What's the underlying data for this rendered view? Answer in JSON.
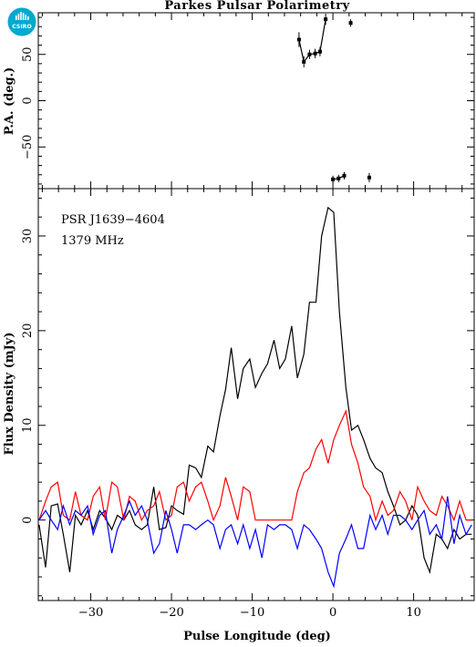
{
  "chart_data": {
    "type": "line",
    "title": "Parkes Pulsar Polarimetry",
    "logo_text": "CSIRO",
    "annotations": [
      "PSR J1639−4604",
      "1379 MHz"
    ],
    "xlabel": "Pulse Longitude (deg)",
    "xlim": [
      -36.5,
      17.5
    ],
    "x_ticks": [
      -30,
      -20,
      -10,
      0,
      10
    ],
    "panels": {
      "pa": {
        "ylabel": "P.A. (deg.)",
        "ylim": [
          -95,
          95
        ],
        "y_ticks": [
          -50,
          0,
          50
        ],
        "points": [
          {
            "x": -4.2,
            "y": 66,
            "err": 8
          },
          {
            "x": -3.6,
            "y": 42,
            "err": 6
          },
          {
            "x": -2.9,
            "y": 50,
            "err": 5
          },
          {
            "x": -2.2,
            "y": 51,
            "err": 5
          },
          {
            "x": -1.6,
            "y": 53,
            "err": 5
          },
          {
            "x": -0.9,
            "y": 88,
            "err": 6
          },
          {
            "x": 0.0,
            "y": -85,
            "err": 4
          },
          {
            "x": 0.7,
            "y": -84,
            "err": 4
          },
          {
            "x": 1.4,
            "y": -81,
            "err": 4
          },
          {
            "x": 2.2,
            "y": 84,
            "err": 4
          },
          {
            "x": 4.5,
            "y": -83,
            "err": 5
          }
        ]
      },
      "profile": {
        "ylabel": "Flux Density (mJy)",
        "ylim": [
          -8.5,
          35
        ],
        "y_ticks": [
          0,
          10,
          20,
          30
        ],
        "series": [
          {
            "key": "total",
            "color": "#000000",
            "x": [
              -36.4,
              -35.6,
              -34.9,
              -34.1,
              -33.4,
              -32.6,
              -31.9,
              -31.2,
              -30.4,
              -29.7,
              -28.9,
              -28.2,
              -27.4,
              -26.7,
              -25.9,
              -25.2,
              -24.5,
              -23.7,
              -23.0,
              -22.2,
              -21.5,
              -20.7,
              -20.0,
              -19.3,
              -18.5,
              -17.8,
              -17.0,
              -16.3,
              -15.5,
              -14.8,
              -14.0,
              -13.3,
              -12.6,
              -11.8,
              -11.1,
              -10.3,
              -9.6,
              -8.8,
              -8.1,
              -7.3,
              -6.6,
              -5.9,
              -5.1,
              -4.4,
              -3.6,
              -2.9,
              -2.1,
              -1.4,
              -0.6,
              0.1,
              0.8,
              1.6,
              2.3,
              3.1,
              3.8,
              4.6,
              5.3,
              6.1,
              6.8,
              7.5,
              8.3,
              9.0,
              9.8,
              10.5,
              11.3,
              12.0,
              12.8,
              13.5,
              14.2,
              15.0,
              15.7,
              16.5,
              17.2
            ],
            "y": [
              -0.5,
              -5.0,
              1.5,
              1.7,
              -1.5,
              -5.5,
              0.5,
              -0.5,
              1.0,
              -1.0,
              1.0,
              0.2,
              -1.0,
              0.5,
              0.0,
              1.0,
              -0.5,
              -1.0,
              -0.5,
              3.5,
              -1.0,
              -0.8,
              1.5,
              1.0,
              0.6,
              5.8,
              5.5,
              4.5,
              7.8,
              7.2,
              11.0,
              13.8,
              18.2,
              12.8,
              16.0,
              17.0,
              14.0,
              15.5,
              16.5,
              19.0,
              16.0,
              17.0,
              20.5,
              15.0,
              17.5,
              23.0,
              23.0,
              30.0,
              33.0,
              32.5,
              22.0,
              14.0,
              9.5,
              10.0,
              8.5,
              6.5,
              5.5,
              5.0,
              3.0,
              1.5,
              -0.5,
              0.0,
              1.5,
              0.5,
              -4.0,
              -5.5,
              -1.5,
              -2.0,
              -3.0,
              -1.0,
              -2.0,
              -1.5,
              -1.5
            ]
          },
          {
            "key": "linear",
            "color": "#ff0000",
            "x": [
              -36.4,
              -35.6,
              -34.9,
              -34.1,
              -33.4,
              -32.6,
              -31.9,
              -31.2,
              -30.4,
              -29.7,
              -28.9,
              -28.2,
              -27.4,
              -26.7,
              -25.9,
              -25.2,
              -24.5,
              -23.7,
              -23.0,
              -22.2,
              -21.5,
              -20.7,
              -20.0,
              -19.3,
              -18.5,
              -17.8,
              -17.0,
              -16.3,
              -15.5,
              -14.8,
              -14.0,
              -13.3,
              -12.6,
              -11.8,
              -11.1,
              -10.3,
              -9.6,
              -8.8,
              -8.1,
              -7.3,
              -6.6,
              -5.9,
              -5.1,
              -4.4,
              -3.6,
              -2.9,
              -2.1,
              -1.4,
              -0.6,
              0.1,
              0.8,
              1.6,
              2.3,
              3.1,
              3.8,
              4.6,
              5.3,
              6.1,
              6.8,
              7.5,
              8.3,
              9.0,
              9.8,
              10.5,
              11.3,
              12.0,
              12.8,
              13.5,
              14.2,
              15.0,
              15.7,
              16.5,
              17.2
            ],
            "y": [
              0.0,
              2.0,
              3.5,
              4.0,
              0.5,
              0.0,
              3.0,
              0.5,
              0.0,
              2.5,
              3.5,
              0.0,
              4.0,
              3.5,
              0.0,
              2.5,
              2.0,
              0.0,
              1.0,
              1.5,
              3.0,
              0.0,
              0.5,
              3.5,
              4.0,
              2.0,
              3.5,
              4.0,
              2.0,
              0.0,
              1.5,
              4.5,
              2.5,
              0.0,
              3.5,
              3.0,
              0.0,
              0.0,
              0.0,
              0.0,
              0.0,
              0.0,
              0.0,
              3.0,
              5.0,
              5.5,
              7.5,
              8.5,
              6.0,
              8.5,
              10.0,
              11.5,
              8.0,
              6.0,
              3.5,
              2.5,
              0.0,
              2.0,
              0.5,
              1.0,
              3.0,
              2.0,
              0.0,
              3.5,
              2.0,
              1.0,
              0.5,
              2.5,
              1.5,
              0.0,
              2.0,
              0.0,
              0.0
            ]
          },
          {
            "key": "circular",
            "color": "#0000ff",
            "x": [
              -36.4,
              -35.6,
              -34.9,
              -34.1,
              -33.4,
              -32.6,
              -31.9,
              -31.2,
              -30.4,
              -29.7,
              -28.9,
              -28.2,
              -27.4,
              -26.7,
              -25.9,
              -25.2,
              -24.5,
              -23.7,
              -23.0,
              -22.2,
              -21.5,
              -20.7,
              -20.0,
              -19.3,
              -18.5,
              -17.8,
              -17.0,
              -16.3,
              -15.5,
              -14.8,
              -14.0,
              -13.3,
              -12.6,
              -11.8,
              -11.1,
              -10.3,
              -9.6,
              -8.8,
              -8.1,
              -7.3,
              -6.6,
              -5.9,
              -5.1,
              -4.4,
              -3.6,
              -2.9,
              -2.1,
              -1.4,
              -0.6,
              0.1,
              0.8,
              1.6,
              2.3,
              3.1,
              3.8,
              4.6,
              5.3,
              6.1,
              6.8,
              7.5,
              8.3,
              9.0,
              9.8,
              10.5,
              11.3,
              12.0,
              12.8,
              13.5,
              14.2,
              15.0,
              15.7,
              16.5,
              17.2
            ],
            "y": [
              0.0,
              1.0,
              0.0,
              -1.0,
              1.5,
              -0.5,
              1.0,
              0.5,
              1.5,
              -1.5,
              0.5,
              1.0,
              -3.5,
              -1.0,
              0.5,
              2.0,
              0.5,
              1.5,
              0.0,
              -3.5,
              -2.5,
              1.0,
              -1.0,
              -3.5,
              -0.5,
              -0.5,
              -1.0,
              -0.5,
              0.0,
              -0.5,
              -3.0,
              -1.0,
              -0.5,
              -2.5,
              -0.5,
              -3.0,
              -1.0,
              -4.0,
              -0.5,
              -1.0,
              -0.5,
              -0.5,
              -1.0,
              -3.0,
              -0.5,
              -1.0,
              -2.0,
              -3.0,
              -5.5,
              -7.0,
              -3.5,
              -2.0,
              -0.5,
              -3.0,
              -3.0,
              0.5,
              -1.0,
              0.5,
              -1.5,
              0.5,
              0.5,
              0.0,
              -1.0,
              0.0,
              1.0,
              -1.5,
              -0.5,
              -2.0,
              2.5,
              -2.5,
              0.5,
              -1.5,
              -0.5
            ]
          }
        ]
      }
    }
  }
}
